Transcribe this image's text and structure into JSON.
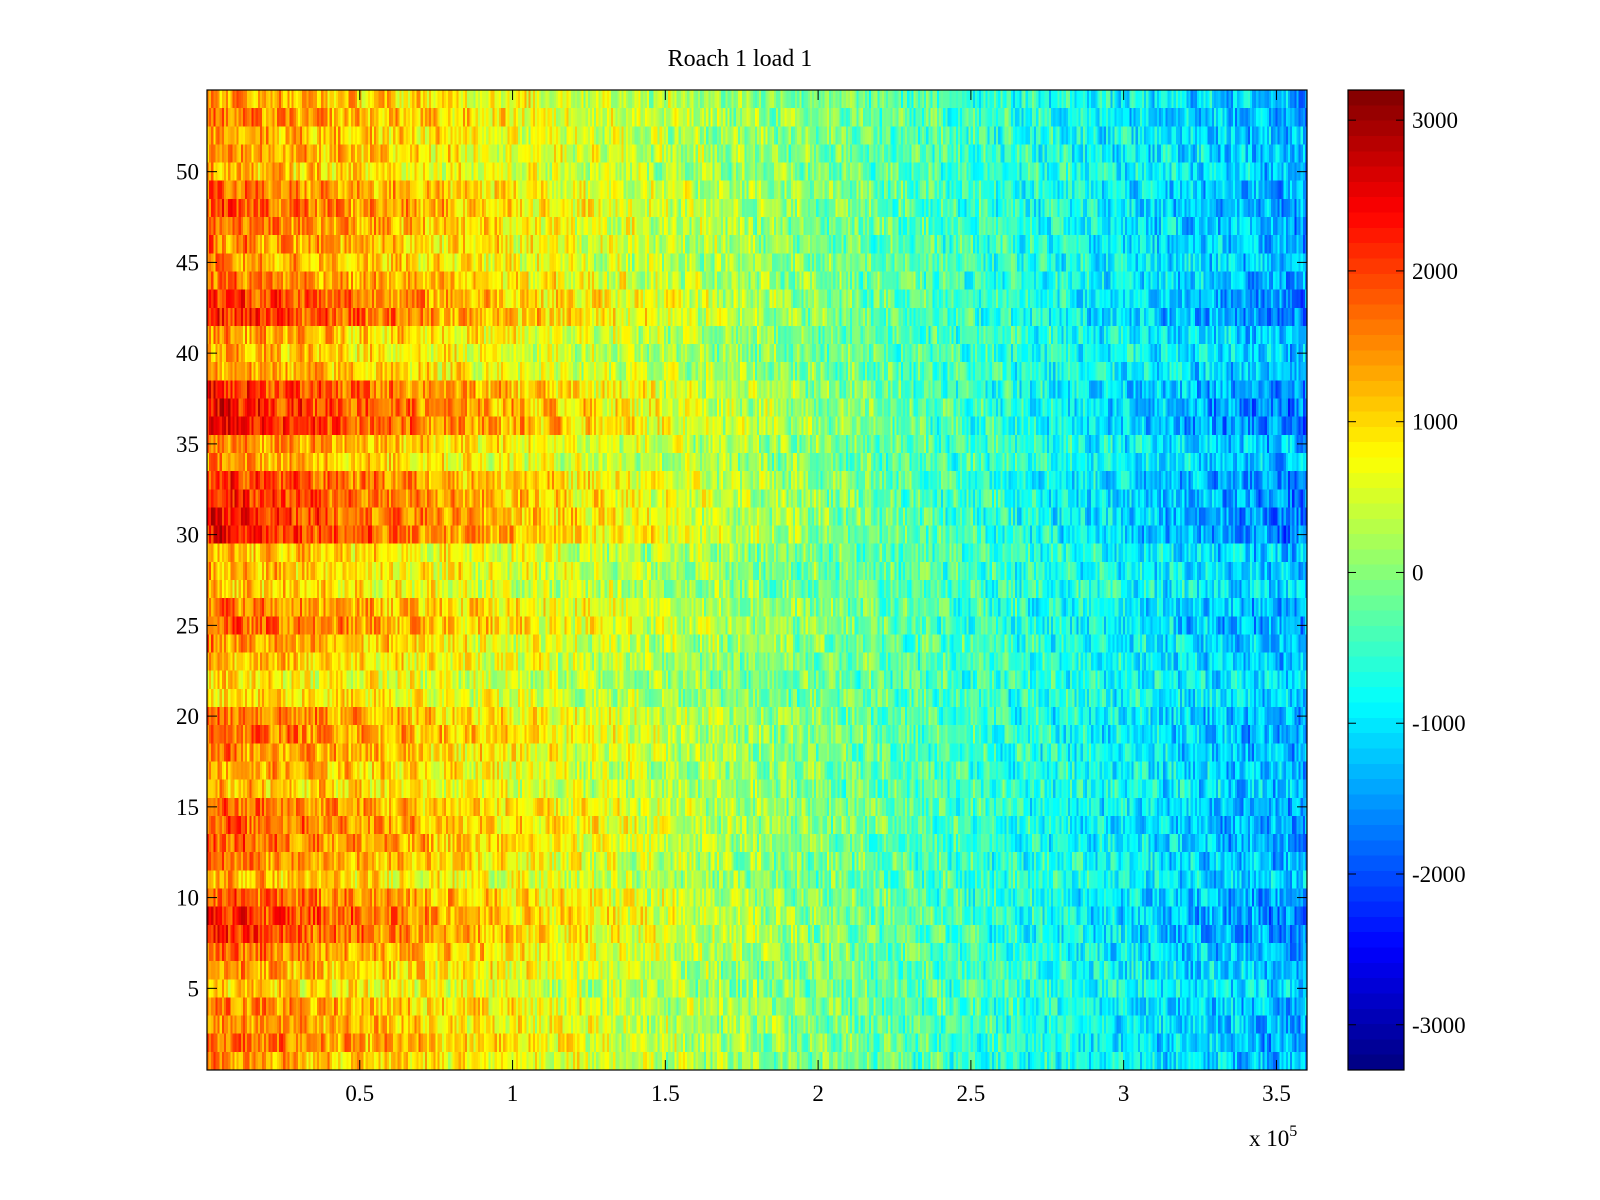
{
  "chart_data": {
    "type": "heatmap",
    "title": "Roach 1 load 1",
    "xlabel": "",
    "ylabel": "",
    "xlim": [
      0,
      3.6
    ],
    "ylim": [
      0.5,
      54.5
    ],
    "x_scale_multiplier": "x 10",
    "x_scale_exponent": "5",
    "x_ticks": [
      0.5,
      1,
      1.5,
      2,
      2.5,
      3,
      3.5
    ],
    "x_tick_labels": [
      "0.5",
      "1",
      "1.5",
      "2",
      "2.5",
      "3",
      "3.5"
    ],
    "y_ticks": [
      5,
      10,
      15,
      20,
      25,
      30,
      35,
      40,
      45,
      50
    ],
    "y_tick_labels": [
      "5",
      "10",
      "15",
      "20",
      "25",
      "30",
      "35",
      "40",
      "45",
      "50"
    ],
    "rows": 54,
    "colormap": "jet",
    "colorbar": {
      "clim": [
        -3300,
        3200
      ],
      "ticks": [
        3000,
        2000,
        1000,
        0,
        -1000,
        -2000,
        -3000
      ],
      "tick_labels": [
        "3000",
        "2000",
        "1000",
        "0",
        "-1000",
        "-2000",
        "-3000"
      ]
    },
    "grid": false,
    "row_intensity": [
      0.3,
      0.5,
      0.4,
      0.4,
      0.1,
      0.3,
      0.5,
      0.75,
      0.8,
      0.6,
      0.2,
      0.4,
      0.55,
      0.6,
      0.5,
      0.2,
      0.3,
      0.4,
      0.55,
      0.5,
      0.1,
      0.0,
      0.2,
      0.3,
      0.55,
      0.45,
      0.1,
      0.2,
      0.2,
      0.9,
      0.85,
      0.8,
      0.75,
      0.3,
      0.4,
      0.95,
      0.9,
      0.8,
      0.3,
      0.2,
      0.3,
      0.8,
      0.75,
      0.5,
      0.3,
      0.4,
      0.5,
      0.6,
      0.5,
      0.2,
      0.3,
      0.3,
      0.4,
      0.3
    ]
  }
}
